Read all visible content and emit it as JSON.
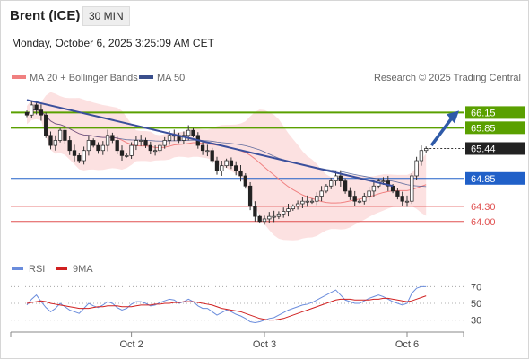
{
  "header": {
    "title": "Brent (ICE)",
    "interval": "30 MIN",
    "datetime": "Monday, October 6, 2025 3:25:09 AM CET"
  },
  "legend": {
    "ma20": "MA 20 + Bollinger Bands",
    "ma50": "MA 50",
    "credit": "Research © 2025 Trading Central",
    "rsi": "RSI",
    "rsi_ma": "9MA"
  },
  "colors": {
    "ma20": "#f08080",
    "ma50": "#3a4f8c",
    "bollinger_fill": "#fcdcdc",
    "resistance": "#5aa000",
    "pivot": "#2060c8",
    "support": "#e05050",
    "trendline": "#3a4f9c",
    "arrow": "#2e5aa8",
    "rsi_line": "#6a8cdc",
    "rsi_ma_line": "#d02020"
  },
  "chart_data": [
    {
      "type": "candlestick",
      "title": "Brent (ICE)",
      "timeframe": "30 MIN",
      "x_ticks": [
        "Oct 2",
        "Oct 3",
        "Oct 6"
      ],
      "ylim": [
        63.5,
        66.6
      ],
      "levels": [
        {
          "label": "66.15",
          "value": 66.15,
          "kind": "resistance"
        },
        {
          "label": "65.85",
          "value": 65.85,
          "kind": "resistance"
        },
        {
          "label": "65.44",
          "value": 65.44,
          "kind": "last"
        },
        {
          "label": "64.85",
          "value": 64.85,
          "kind": "pivot"
        },
        {
          "label": "64.30",
          "value": 64.3,
          "kind": "support"
        },
        {
          "label": "64.00",
          "value": 64.0,
          "kind": "support"
        }
      ],
      "closes": [
        66.1,
        66.3,
        66.2,
        66.1,
        65.7,
        65.5,
        65.6,
        65.8,
        65.6,
        65.4,
        65.3,
        65.2,
        65.4,
        65.6,
        65.5,
        65.4,
        65.5,
        65.7,
        65.6,
        65.4,
        65.3,
        65.3,
        65.5,
        65.6,
        65.6,
        65.5,
        65.4,
        65.4,
        65.5,
        65.6,
        65.7,
        65.7,
        65.6,
        65.7,
        65.8,
        65.7,
        65.5,
        65.4,
        65.4,
        65.2,
        65.0,
        65.1,
        65.2,
        65.1,
        65.0,
        64.9,
        64.7,
        64.3,
        64.1,
        64.0,
        64.05,
        64.1,
        64.1,
        64.15,
        64.2,
        64.25,
        64.3,
        64.35,
        64.4,
        64.4,
        64.4,
        64.5,
        64.6,
        64.7,
        64.8,
        64.9,
        64.8,
        64.6,
        64.5,
        64.4,
        64.4,
        64.5,
        64.6,
        64.7,
        64.8,
        64.8,
        64.7,
        64.6,
        64.5,
        64.4,
        64.4,
        64.9,
        65.2,
        65.4,
        65.44
      ],
      "trendline": {
        "from": {
          "x": 0,
          "y": 66.4
        },
        "to": {
          "x": 77,
          "y": 64.7
        }
      },
      "projection": {
        "from": 65.5,
        "to": 66.15
      },
      "indicators": [
        "MA 20 + Bollinger Bands",
        "MA 50"
      ]
    },
    {
      "type": "line",
      "title": "RSI",
      "series": [
        {
          "name": "RSI"
        },
        {
          "name": "9MA"
        }
      ],
      "y_ticks": [
        70,
        50,
        30
      ],
      "ylim": [
        20,
        80
      ],
      "rsi": [
        48,
        55,
        60,
        52,
        45,
        40,
        44,
        50,
        46,
        42,
        40,
        38,
        44,
        50,
        47,
        45,
        48,
        52,
        50,
        45,
        42,
        44,
        49,
        52,
        52,
        50,
        47,
        48,
        51,
        53,
        55,
        54,
        50,
        52,
        55,
        52,
        47,
        44,
        44,
        40,
        36,
        39,
        42,
        40,
        37,
        35,
        32,
        28,
        27,
        28,
        30,
        32,
        33,
        36,
        39,
        42,
        44,
        46,
        48,
        49,
        51,
        54,
        57,
        60,
        63,
        66,
        60,
        54,
        52,
        50,
        50,
        53,
        56,
        58,
        60,
        58,
        55,
        52,
        50,
        48,
        50,
        62,
        68,
        70,
        70
      ],
      "rsi_ma": [
        50,
        51,
        52,
        53,
        52,
        50,
        49,
        48,
        47,
        46,
        45,
        44,
        44,
        44,
        45,
        46,
        46,
        47,
        47,
        47,
        46,
        46,
        46,
        47,
        48,
        48,
        48,
        49,
        49,
        50,
        50,
        51,
        51,
        52,
        52,
        52,
        51,
        50,
        49,
        48,
        46,
        44,
        43,
        42,
        41,
        40,
        38,
        36,
        34,
        32,
        31,
        30,
        30,
        31,
        32,
        34,
        36,
        38,
        40,
        42,
        44,
        46,
        48,
        50,
        52,
        54,
        55,
        55,
        55,
        54,
        54,
        54,
        54,
        55,
        55,
        56,
        56,
        55,
        54,
        53,
        52,
        53,
        55,
        57,
        59
      ]
    }
  ]
}
